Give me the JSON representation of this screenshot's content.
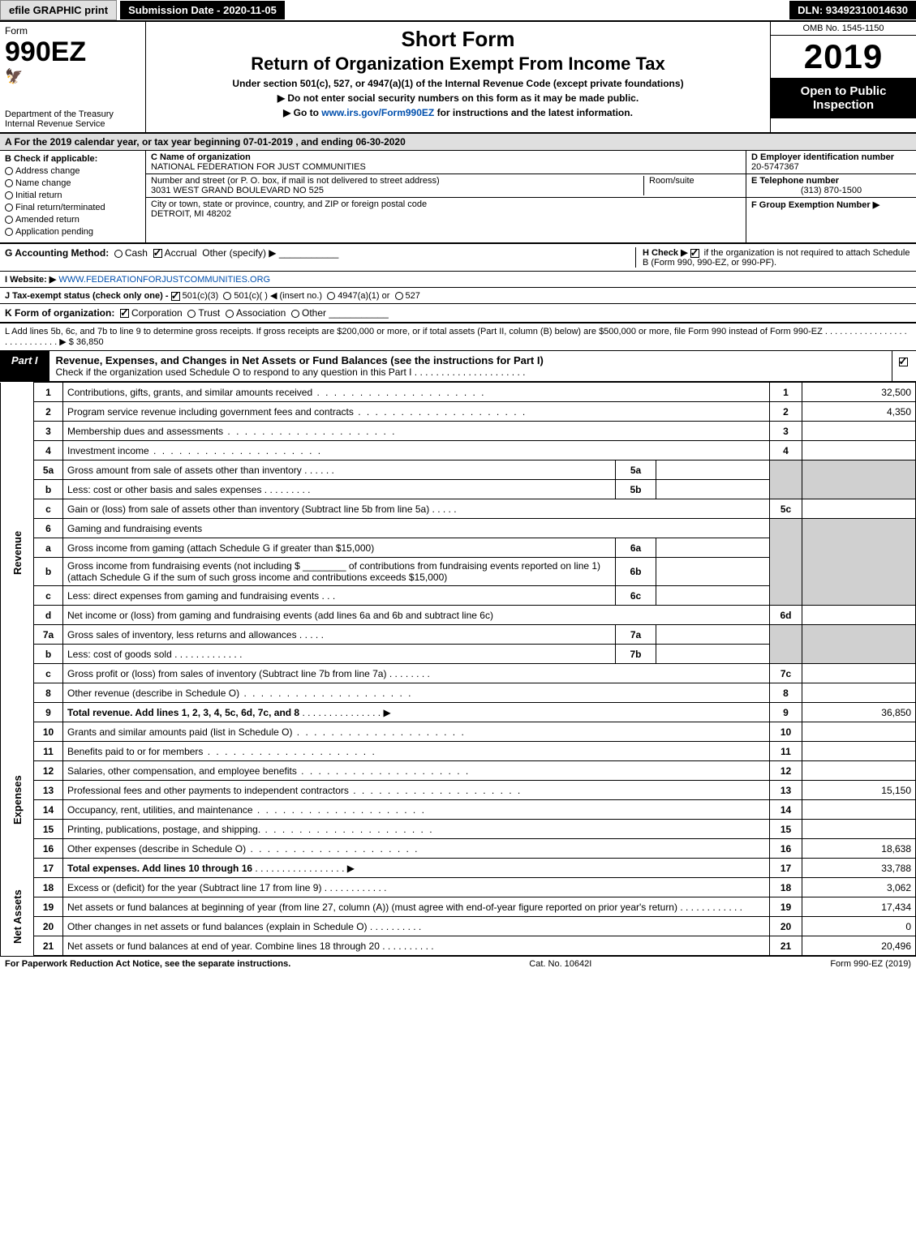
{
  "top_bar": {
    "efile_label": "efile GRAPHIC print",
    "submission_label": "Submission Date - 2020-11-05",
    "dln_label": "DLN: 93492310014630"
  },
  "header": {
    "form_label": "Form",
    "form_number": "990EZ",
    "dept": "Department of the Treasury",
    "irs": "Internal Revenue Service",
    "short_form": "Short Form",
    "title": "Return of Organization Exempt From Income Tax",
    "subtitle": "Under section 501(c), 527, or 4947(a)(1) of the Internal Revenue Code (except private foundations)",
    "warning": "▶ Do not enter social security numbers on this form as it may be made public.",
    "goto": "▶ Go to www.irs.gov/Form990EZ for instructions and the latest information.",
    "goto_link": "www.irs.gov/Form990EZ",
    "omb": "OMB No. 1545-1150",
    "year": "2019",
    "open_public": "Open to Public Inspection"
  },
  "section_a": "A For the 2019 calendar year, or tax year beginning 07-01-2019 , and ending 06-30-2020",
  "col_b": {
    "heading": "B Check if applicable:",
    "addr_change": "Address change",
    "name_change": "Name change",
    "initial": "Initial return",
    "final": "Final return/terminated",
    "amended": "Amended return",
    "pending": "Application pending"
  },
  "col_c": {
    "c_label": "C Name of organization",
    "org_name": "NATIONAL FEDERATION FOR JUST COMMUNITIES",
    "street_label": "Number and street (or P. O. box, if mail is not delivered to street address)",
    "street": "3031 WEST GRAND BOULEVARD NO 525",
    "room_label": "Room/suite",
    "city_label": "City or town, state or province, country, and ZIP or foreign postal code",
    "city": "DETROIT, MI  48202"
  },
  "col_d": {
    "d_label": "D Employer identification number",
    "ein": "20-5747367",
    "e_label": "E Telephone number",
    "phone": "(313) 870-1500",
    "f_label": "F Group Exemption Number ▶"
  },
  "row_g": {
    "label": "G Accounting Method:",
    "cash": "Cash",
    "accrual": "Accrual",
    "other": "Other (specify) ▶"
  },
  "row_h": {
    "text1": "H Check ▶",
    "text2": "if the organization is not required to attach Schedule B (Form 990, 990-EZ, or 990-PF)."
  },
  "row_i": {
    "label": "I Website: ▶",
    "url": "WWW.FEDERATIONFORJUSTCOMMUNITIES.ORG"
  },
  "row_j": {
    "label": "J Tax-exempt status (check only one) -",
    "opt1": "501(c)(3)",
    "opt2": "501(c)(  ) ◀ (insert no.)",
    "opt3": "4947(a)(1) or",
    "opt4": "527"
  },
  "row_k": {
    "label": "K Form of organization:",
    "corp": "Corporation",
    "trust": "Trust",
    "assoc": "Association",
    "other": "Other"
  },
  "row_l": {
    "text": "L Add lines 5b, 6c, and 7b to line 9 to determine gross receipts. If gross receipts are $200,000 or more, or if total assets (Part II, column (B) below) are $500,000 or more, file Form 990 instead of Form 990-EZ . . . . . . . . . . . . . . . . . . . . . . . . . . . . ▶ $ 36,850"
  },
  "part1": {
    "tag": "Part I",
    "title": "Revenue, Expenses, and Changes in Net Assets or Fund Balances (see the instructions for Part I)",
    "check_text": "Check if the organization used Schedule O to respond to any question in this Part I . . . . . . . . . . . . . . . . . . . . ."
  },
  "side_labels": {
    "revenue": "Revenue",
    "expenses": "Expenses",
    "net_assets": "Net Assets"
  },
  "lines": {
    "l1": {
      "num": "1",
      "desc": "Contributions, gifts, grants, and similar amounts received",
      "ln": "1",
      "amt": "32,500"
    },
    "l2": {
      "num": "2",
      "desc": "Program service revenue including government fees and contracts",
      "ln": "2",
      "amt": "4,350"
    },
    "l3": {
      "num": "3",
      "desc": "Membership dues and assessments",
      "ln": "3",
      "amt": ""
    },
    "l4": {
      "num": "4",
      "desc": "Investment income",
      "ln": "4",
      "amt": ""
    },
    "l5a": {
      "num": "5a",
      "desc": "Gross amount from sale of assets other than inventory",
      "sub": "5a",
      "subval": ""
    },
    "l5b": {
      "num": "b",
      "desc": "Less: cost or other basis and sales expenses",
      "sub": "5b",
      "subval": ""
    },
    "l5c": {
      "num": "c",
      "desc": "Gain or (loss) from sale of assets other than inventory (Subtract line 5b from line 5a)",
      "ln": "5c",
      "amt": ""
    },
    "l6": {
      "num": "6",
      "desc": "Gaming and fundraising events"
    },
    "l6a": {
      "num": "a",
      "desc": "Gross income from gaming (attach Schedule G if greater than $15,000)",
      "sub": "6a",
      "subval": ""
    },
    "l6b": {
      "num": "b",
      "desc1": "Gross income from fundraising events (not including $",
      "desc2": "of contributions from fundraising events reported on line 1) (attach Schedule G if the sum of such gross income and contributions exceeds $15,000)",
      "sub": "6b",
      "subval": ""
    },
    "l6c": {
      "num": "c",
      "desc": "Less: direct expenses from gaming and fundraising events",
      "sub": "6c",
      "subval": ""
    },
    "l6d": {
      "num": "d",
      "desc": "Net income or (loss) from gaming and fundraising events (add lines 6a and 6b and subtract line 6c)",
      "ln": "6d",
      "amt": ""
    },
    "l7a": {
      "num": "7a",
      "desc": "Gross sales of inventory, less returns and allowances",
      "sub": "7a",
      "subval": ""
    },
    "l7b": {
      "num": "b",
      "desc": "Less: cost of goods sold",
      "sub": "7b",
      "subval": ""
    },
    "l7c": {
      "num": "c",
      "desc": "Gross profit or (loss) from sales of inventory (Subtract line 7b from line 7a)",
      "ln": "7c",
      "amt": ""
    },
    "l8": {
      "num": "8",
      "desc": "Other revenue (describe in Schedule O)",
      "ln": "8",
      "amt": ""
    },
    "l9": {
      "num": "9",
      "desc": "Total revenue. Add lines 1, 2, 3, 4, 5c, 6d, 7c, and 8",
      "ln": "9",
      "amt": "36,850"
    },
    "l10": {
      "num": "10",
      "desc": "Grants and similar amounts paid (list in Schedule O)",
      "ln": "10",
      "amt": ""
    },
    "l11": {
      "num": "11",
      "desc": "Benefits paid to or for members",
      "ln": "11",
      "amt": ""
    },
    "l12": {
      "num": "12",
      "desc": "Salaries, other compensation, and employee benefits",
      "ln": "12",
      "amt": ""
    },
    "l13": {
      "num": "13",
      "desc": "Professional fees and other payments to independent contractors",
      "ln": "13",
      "amt": "15,150"
    },
    "l14": {
      "num": "14",
      "desc": "Occupancy, rent, utilities, and maintenance",
      "ln": "14",
      "amt": ""
    },
    "l15": {
      "num": "15",
      "desc": "Printing, publications, postage, and shipping.",
      "ln": "15",
      "amt": ""
    },
    "l16": {
      "num": "16",
      "desc": "Other expenses (describe in Schedule O)",
      "ln": "16",
      "amt": "18,638"
    },
    "l17": {
      "num": "17",
      "desc": "Total expenses. Add lines 10 through 16",
      "ln": "17",
      "amt": "33,788"
    },
    "l18": {
      "num": "18",
      "desc": "Excess or (deficit) for the year (Subtract line 17 from line 9)",
      "ln": "18",
      "amt": "3,062"
    },
    "l19": {
      "num": "19",
      "desc": "Net assets or fund balances at beginning of year (from line 27, column (A)) (must agree with end-of-year figure reported on prior year's return)",
      "ln": "19",
      "amt": "17,434"
    },
    "l20": {
      "num": "20",
      "desc": "Other changes in net assets or fund balances (explain in Schedule O)",
      "ln": "20",
      "amt": "0"
    },
    "l21": {
      "num": "21",
      "desc": "Net assets or fund balances at end of year. Combine lines 18 through 20",
      "ln": "21",
      "amt": "20,496"
    }
  },
  "footer": {
    "left": "For Paperwork Reduction Act Notice, see the separate instructions.",
    "mid": "Cat. No. 10642I",
    "right": "Form 990-EZ (2019)"
  },
  "colors": {
    "black": "#000000",
    "white": "#ffffff",
    "gray_bg": "#dfdfdf",
    "shade": "#d0d0d0",
    "link": "#004fad"
  }
}
